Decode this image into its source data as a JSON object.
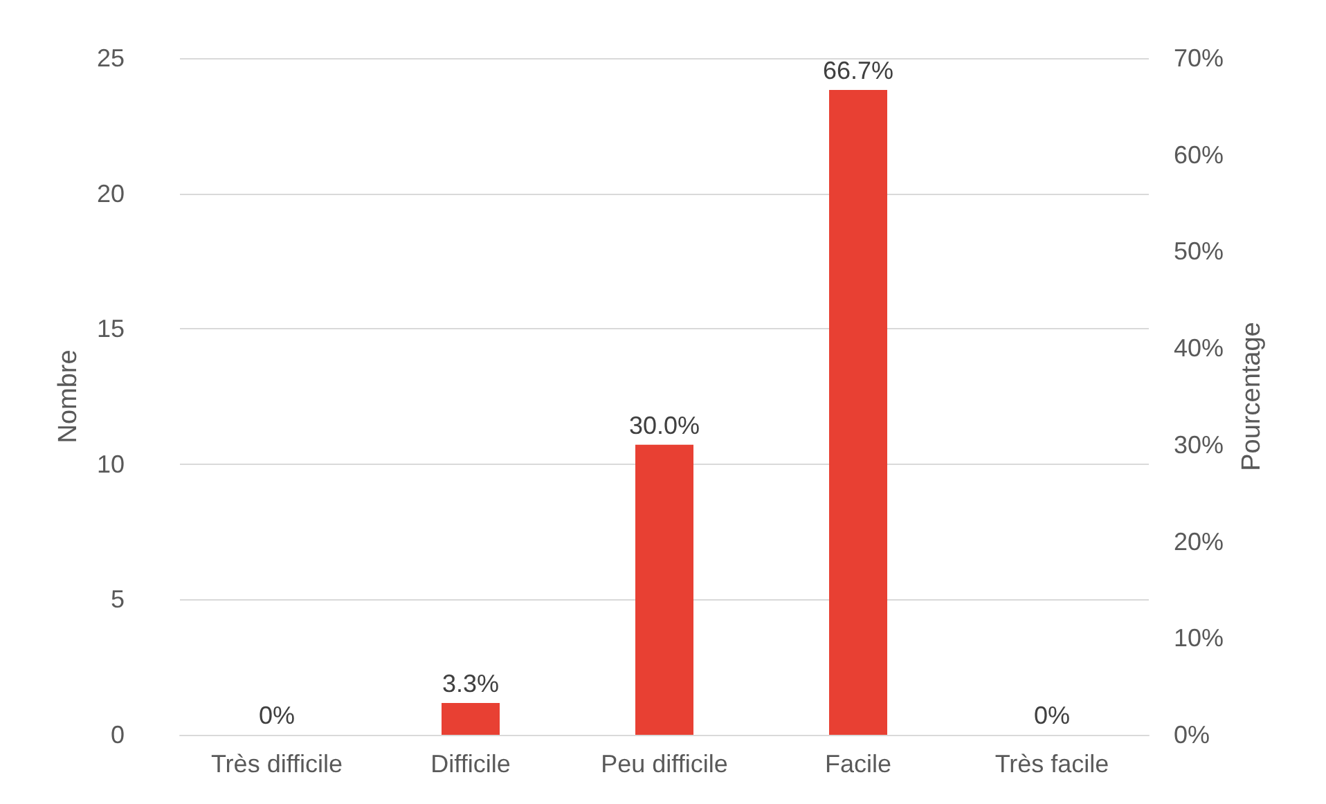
{
  "chart_data": {
    "type": "bar",
    "ylabel": "Nombre",
    "y2label": "Pourcentage",
    "categories": [
      "Très difficile",
      "Difficile",
      "Peu difficile",
      "Facile",
      "Très facile"
    ],
    "series": [
      {
        "color": "#e84033",
        "axis": "y2",
        "values": [
          0,
          3.3,
          30.0,
          66.7,
          0
        ],
        "value_labels": [
          "0%",
          "3.3%",
          "30.0%",
          "66.7%",
          "0%"
        ]
      }
    ],
    "ylim": [
      0,
      25
    ],
    "yticks": [
      0,
      5,
      10,
      15,
      20,
      25
    ],
    "y2lim": [
      0,
      70
    ],
    "y2ticks": [
      {
        "value": 0,
        "label": "0%"
      },
      {
        "value": 10,
        "label": "10%"
      },
      {
        "value": 20,
        "label": "20%"
      },
      {
        "value": 30,
        "label": "30%"
      },
      {
        "value": 40,
        "label": "40%"
      },
      {
        "value": 50,
        "label": "50%"
      },
      {
        "value": 60,
        "label": "60%"
      },
      {
        "value": 70,
        "label": "70%"
      }
    ],
    "grid": "y"
  }
}
